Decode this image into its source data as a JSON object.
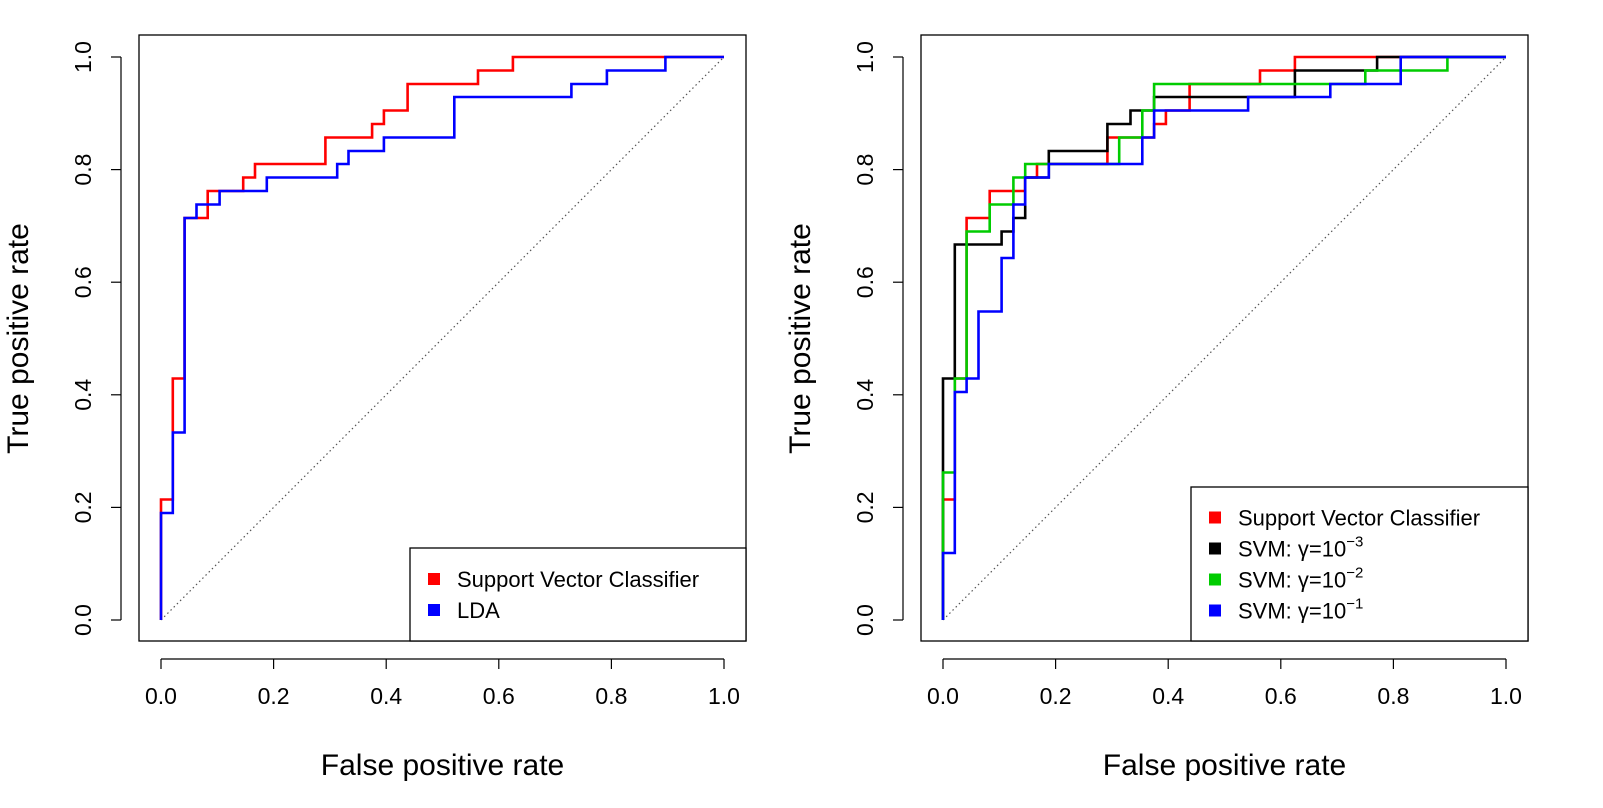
{
  "chart_data": [
    {
      "type": "line",
      "title": "",
      "xlabel": "False positive rate",
      "ylabel": "True positive rate",
      "xlim": [
        0,
        1
      ],
      "ylim": [
        0,
        1
      ],
      "xticks": [
        "0.0",
        "0.2",
        "0.4",
        "0.6",
        "0.8",
        "1.0"
      ],
      "yticks": [
        "0.0",
        "0.2",
        "0.4",
        "0.6",
        "0.8",
        "1.0"
      ],
      "grid": false,
      "legend_position": "bottom-right",
      "reference_line": "diagonal dotted",
      "series": [
        {
          "name": "Support Vector Classifier",
          "color": "#ff0000",
          "points": [
            [
              0,
              0
            ],
            [
              0,
              0.214
            ],
            [
              0.021,
              0.214
            ],
            [
              0.021,
              0.429
            ],
            [
              0.042,
              0.429
            ],
            [
              0.042,
              0.714
            ],
            [
              0.083,
              0.714
            ],
            [
              0.083,
              0.762
            ],
            [
              0.146,
              0.762
            ],
            [
              0.146,
              0.786
            ],
            [
              0.167,
              0.786
            ],
            [
              0.167,
              0.81
            ],
            [
              0.292,
              0.81
            ],
            [
              0.292,
              0.857
            ],
            [
              0.375,
              0.857
            ],
            [
              0.375,
              0.881
            ],
            [
              0.396,
              0.881
            ],
            [
              0.396,
              0.905
            ],
            [
              0.438,
              0.905
            ],
            [
              0.438,
              0.952
            ],
            [
              0.563,
              0.952
            ],
            [
              0.563,
              0.976
            ],
            [
              0.625,
              0.976
            ],
            [
              0.625,
              1
            ],
            [
              1,
              1
            ]
          ]
        },
        {
          "name": "LDA",
          "color": "#0000ff",
          "points": [
            [
              0,
              0
            ],
            [
              0,
              0.19
            ],
            [
              0.021,
              0.19
            ],
            [
              0.021,
              0.333
            ],
            [
              0.042,
              0.333
            ],
            [
              0.042,
              0.714
            ],
            [
              0.063,
              0.714
            ],
            [
              0.063,
              0.738
            ],
            [
              0.104,
              0.738
            ],
            [
              0.104,
              0.762
            ],
            [
              0.188,
              0.762
            ],
            [
              0.188,
              0.786
            ],
            [
              0.313,
              0.786
            ],
            [
              0.313,
              0.81
            ],
            [
              0.333,
              0.81
            ],
            [
              0.333,
              0.833
            ],
            [
              0.396,
              0.833
            ],
            [
              0.396,
              0.857
            ],
            [
              0.521,
              0.857
            ],
            [
              0.521,
              0.929
            ],
            [
              0.729,
              0.929
            ],
            [
              0.729,
              0.952
            ],
            [
              0.792,
              0.952
            ],
            [
              0.792,
              0.976
            ],
            [
              0.896,
              0.976
            ],
            [
              0.896,
              1
            ],
            [
              1,
              1
            ]
          ]
        }
      ]
    },
    {
      "type": "line",
      "title": "",
      "xlabel": "False positive rate",
      "ylabel": "True positive rate",
      "xlim": [
        0,
        1
      ],
      "ylim": [
        0,
        1
      ],
      "xticks": [
        "0.0",
        "0.2",
        "0.4",
        "0.6",
        "0.8",
        "1.0"
      ],
      "yticks": [
        "0.0",
        "0.2",
        "0.4",
        "0.6",
        "0.8",
        "1.0"
      ],
      "grid": false,
      "legend_position": "bottom-right",
      "reference_line": "diagonal dotted",
      "series": [
        {
          "name": "Support Vector Classifier",
          "legend_base": "Support Vector Classifier",
          "legend_exp": "",
          "color": "#ff0000",
          "points": [
            [
              0,
              0
            ],
            [
              0,
              0.214
            ],
            [
              0.021,
              0.214
            ],
            [
              0.021,
              0.429
            ],
            [
              0.042,
              0.429
            ],
            [
              0.042,
              0.714
            ],
            [
              0.083,
              0.714
            ],
            [
              0.083,
              0.762
            ],
            [
              0.146,
              0.762
            ],
            [
              0.146,
              0.786
            ],
            [
              0.167,
              0.786
            ],
            [
              0.167,
              0.81
            ],
            [
              0.292,
              0.81
            ],
            [
              0.292,
              0.857
            ],
            [
              0.375,
              0.857
            ],
            [
              0.375,
              0.881
            ],
            [
              0.396,
              0.881
            ],
            [
              0.396,
              0.905
            ],
            [
              0.438,
              0.905
            ],
            [
              0.438,
              0.952
            ],
            [
              0.563,
              0.952
            ],
            [
              0.563,
              0.976
            ],
            [
              0.625,
              0.976
            ],
            [
              0.625,
              1
            ],
            [
              1,
              1
            ]
          ]
        },
        {
          "name": "SVM: γ=10^-3",
          "legend_base": "SVM: γ=10",
          "legend_exp": "−3",
          "color": "#000000",
          "points": [
            [
              0,
              0
            ],
            [
              0,
              0.429
            ],
            [
              0.021,
              0.429
            ],
            [
              0.021,
              0.667
            ],
            [
              0.104,
              0.667
            ],
            [
              0.104,
              0.69
            ],
            [
              0.125,
              0.69
            ],
            [
              0.125,
              0.714
            ],
            [
              0.146,
              0.714
            ],
            [
              0.146,
              0.786
            ],
            [
              0.188,
              0.786
            ],
            [
              0.188,
              0.833
            ],
            [
              0.292,
              0.833
            ],
            [
              0.292,
              0.881
            ],
            [
              0.333,
              0.881
            ],
            [
              0.333,
              0.905
            ],
            [
              0.375,
              0.905
            ],
            [
              0.375,
              0.929
            ],
            [
              0.625,
              0.929
            ],
            [
              0.625,
              0.976
            ],
            [
              0.771,
              0.976
            ],
            [
              0.771,
              1
            ],
            [
              1,
              1
            ]
          ]
        },
        {
          "name": "SVM: γ=10^-2",
          "legend_base": "SVM: γ=10",
          "legend_exp": "−2",
          "color": "#00cc00",
          "points": [
            [
              0,
              0
            ],
            [
              0,
              0.119
            ],
            [
              0,
              0.262
            ],
            [
              0.021,
              0.262
            ],
            [
              0.021,
              0.429
            ],
            [
              0.042,
              0.429
            ],
            [
              0.042,
              0.69
            ],
            [
              0.083,
              0.69
            ],
            [
              0.083,
              0.738
            ],
            [
              0.125,
              0.738
            ],
            [
              0.125,
              0.786
            ],
            [
              0.146,
              0.786
            ],
            [
              0.146,
              0.81
            ],
            [
              0.313,
              0.81
            ],
            [
              0.313,
              0.857
            ],
            [
              0.354,
              0.857
            ],
            [
              0.354,
              0.905
            ],
            [
              0.375,
              0.905
            ],
            [
              0.375,
              0.952
            ],
            [
              0.75,
              0.952
            ],
            [
              0.75,
              0.976
            ],
            [
              0.896,
              0.976
            ],
            [
              0.896,
              1
            ],
            [
              1,
              1
            ]
          ]
        },
        {
          "name": "SVM: γ=10^-1",
          "legend_base": "SVM: γ=10",
          "legend_exp": "−1",
          "color": "#0000ff",
          "points": [
            [
              0,
              0
            ],
            [
              0,
              0.119
            ],
            [
              0.021,
              0.119
            ],
            [
              0.021,
              0.405
            ],
            [
              0.042,
              0.405
            ],
            [
              0.042,
              0.429
            ],
            [
              0.063,
              0.429
            ],
            [
              0.063,
              0.548
            ],
            [
              0.104,
              0.548
            ],
            [
              0.104,
              0.643
            ],
            [
              0.125,
              0.643
            ],
            [
              0.125,
              0.738
            ],
            [
              0.146,
              0.738
            ],
            [
              0.146,
              0.786
            ],
            [
              0.188,
              0.786
            ],
            [
              0.188,
              0.81
            ],
            [
              0.354,
              0.81
            ],
            [
              0.354,
              0.857
            ],
            [
              0.375,
              0.857
            ],
            [
              0.375,
              0.905
            ],
            [
              0.542,
              0.905
            ],
            [
              0.542,
              0.929
            ],
            [
              0.688,
              0.929
            ],
            [
              0.688,
              0.952
            ],
            [
              0.813,
              0.952
            ],
            [
              0.813,
              1
            ],
            [
              1,
              1
            ]
          ]
        }
      ]
    }
  ]
}
